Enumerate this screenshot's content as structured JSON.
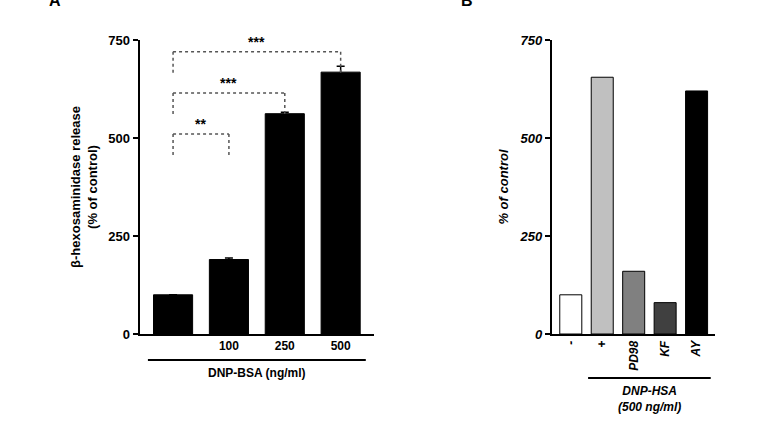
{
  "chart_data": [
    {
      "type": "bar",
      "panel": "A",
      "categories": [
        null,
        "100",
        "250",
        "500"
      ],
      "values": [
        100,
        190,
        562,
        668
      ],
      "errors": [
        0,
        4,
        4,
        15
      ],
      "color": "#000000",
      "ylabel": "β-hexosaminidase release\n(% of control)",
      "xlabel": "DNP-BSA (ng/ml)",
      "xlabel_span": [
        0,
        3
      ],
      "ylim": [
        0,
        750
      ],
      "yticks": [
        0,
        250,
        500,
        750
      ],
      "grid": false,
      "brackets": [
        {
          "label": "**",
          "from": 0,
          "to": 1
        },
        {
          "label": "***",
          "from": 0,
          "to": 2
        },
        {
          "label": "***",
          "from": 0,
          "to": 3
        }
      ]
    },
    {
      "type": "bar",
      "panel": "B",
      "categories": [
        "-",
        "+",
        "PD98",
        "KF",
        "AY"
      ],
      "values": [
        100,
        655,
        160,
        80,
        620
      ],
      "colors": [
        "#ffffff",
        "#c0c0c0",
        "#808080",
        "#404040",
        "#000000"
      ],
      "ylabel": "% of control",
      "xlabel": "DNP-HSA\n(500 ng/ml)",
      "xlabel_span": [
        1,
        4
      ],
      "ylim": [
        0,
        750
      ],
      "yticks": [
        0,
        250,
        500,
        750
      ],
      "grid": false
    }
  ]
}
